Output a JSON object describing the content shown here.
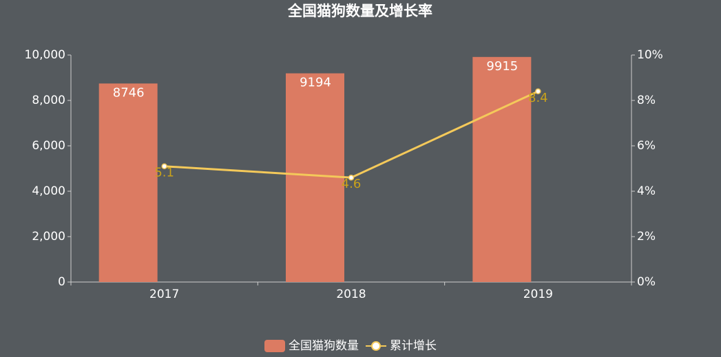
{
  "chart_data": {
    "type": "bar",
    "title": "全国猫狗数量及增长率",
    "categories": [
      "2017",
      "2018",
      "2019"
    ],
    "series": [
      {
        "name": "全国猫狗数量",
        "type": "bar",
        "color": "#dc7b62",
        "values": [
          8746,
          9194,
          9915
        ]
      },
      {
        "name": "累计增长",
        "type": "line",
        "axis": "y2",
        "color": "#f4c95a",
        "values": [
          5.1,
          4.6,
          8.4
        ]
      }
    ],
    "ylim": [
      0,
      10000
    ],
    "yticks": [
      0,
      {
        "value": 2000,
        "label": "2,000"
      },
      {
        "value": 4000,
        "label": "4,000"
      },
      {
        "value": 6000,
        "label": "6,000"
      },
      {
        "value": 8000,
        "label": "8,000"
      },
      {
        "value": 10000,
        "label": "10,000"
      }
    ],
    "y2lim": [
      0,
      10
    ],
    "y2ticks": [
      {
        "value": 0,
        "label": "0%"
      },
      {
        "value": 2,
        "label": "2%"
      },
      {
        "value": 4,
        "label": "4%"
      },
      {
        "value": 6,
        "label": "6%"
      },
      {
        "value": 8,
        "label": "8%"
      },
      {
        "value": 10,
        "label": "10%"
      }
    ],
    "legend": "bottom"
  }
}
